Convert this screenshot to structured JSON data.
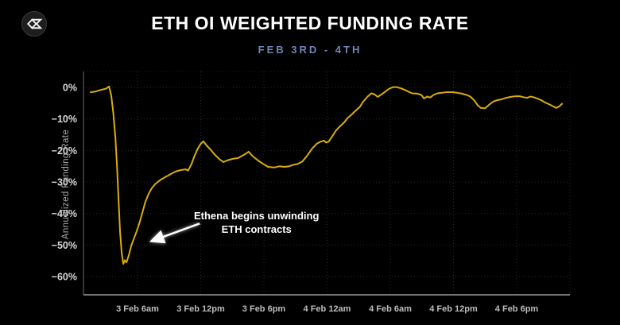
{
  "header": {
    "title": "ETH OI WEIGHTED FUNDING RATE",
    "subtitle": "FEB 3RD - 4TH",
    "logo": "velo-sigma-logo"
  },
  "colors": {
    "background": "#000000",
    "line": "#d9ad0a",
    "title": "#ffffff",
    "subtitle": "#6e86ba",
    "grid": "#2a2a2a",
    "y_tick_labels": "#d8d8d8",
    "x_tick_labels": "#bdbdbd",
    "annotation": "#ffffff"
  },
  "chart_data": {
    "type": "line",
    "title": "ETH OI WEIGHTED FUNDING RATE",
    "subtitle": "FEB 3RD - 4TH",
    "xlabel": "",
    "ylabel": "Annualized Funding Rate",
    "grid": true,
    "legend": false,
    "ylim": [
      -66,
      5
    ],
    "x_unit": "hours since 3 Feb 00:00",
    "xlim": [
      0.9,
      47
    ],
    "y_ticks": [
      {
        "v": 0,
        "label": "0%"
      },
      {
        "v": -10,
        "label": "−10%"
      },
      {
        "v": -20,
        "label": "−20%"
      },
      {
        "v": -30,
        "label": "−30%"
      },
      {
        "v": -40,
        "label": "−40%"
      },
      {
        "v": -50,
        "label": "−50%"
      },
      {
        "v": -60,
        "label": "−60%"
      }
    ],
    "x_ticks": [
      {
        "t": 6,
        "label": "3 Feb 6am"
      },
      {
        "t": 12,
        "label": "3 Feb 12pm"
      },
      {
        "t": 18,
        "label": "3 Feb 6pm"
      },
      {
        "t": 24,
        "label": "4 Feb 12am"
      },
      {
        "t": 30,
        "label": "4 Feb 6am"
      },
      {
        "t": 36,
        "label": "4 Feb 12pm"
      },
      {
        "t": 42,
        "label": "4 Feb 6pm"
      }
    ],
    "series": [
      {
        "name": "ETH OI weighted funding rate (annualized %)",
        "color": "#d9ad0a",
        "points": [
          [
            1.55,
            -1.5
          ],
          [
            2.0,
            -1.3
          ],
          [
            2.5,
            -0.8
          ],
          [
            3.0,
            -0.4
          ],
          [
            3.3,
            0.3
          ],
          [
            3.5,
            -2.5
          ],
          [
            3.7,
            -8.0
          ],
          [
            3.9,
            -16.0
          ],
          [
            4.05,
            -25.0
          ],
          [
            4.2,
            -36.0
          ],
          [
            4.35,
            -46.0
          ],
          [
            4.5,
            -52.5
          ],
          [
            4.65,
            -56.0
          ],
          [
            4.8,
            -54.8
          ],
          [
            4.95,
            -55.5
          ],
          [
            5.2,
            -53.0
          ],
          [
            5.4,
            -50.2
          ],
          [
            5.6,
            -48.5
          ],
          [
            5.9,
            -45.8
          ],
          [
            6.2,
            -42.8
          ],
          [
            6.5,
            -39.3
          ],
          [
            6.75,
            -36.3
          ],
          [
            7.05,
            -33.8
          ],
          [
            7.35,
            -32.0
          ],
          [
            7.7,
            -30.6
          ],
          [
            8.2,
            -29.3
          ],
          [
            8.65,
            -28.4
          ],
          [
            9.1,
            -27.6
          ],
          [
            9.6,
            -26.7
          ],
          [
            10.15,
            -26.2
          ],
          [
            10.6,
            -26.0
          ],
          [
            10.8,
            -26.4
          ],
          [
            11.1,
            -24.5
          ],
          [
            11.4,
            -21.8
          ],
          [
            11.7,
            -19.6
          ],
          [
            12.0,
            -17.9
          ],
          [
            12.25,
            -17.1
          ],
          [
            12.55,
            -18.4
          ],
          [
            12.95,
            -19.8
          ],
          [
            13.3,
            -21.2
          ],
          [
            13.75,
            -22.7
          ],
          [
            14.15,
            -23.7
          ],
          [
            14.5,
            -23.2
          ],
          [
            15.0,
            -22.7
          ],
          [
            15.55,
            -22.4
          ],
          [
            16.1,
            -21.4
          ],
          [
            16.55,
            -20.4
          ],
          [
            16.9,
            -21.7
          ],
          [
            17.45,
            -23.2
          ],
          [
            17.95,
            -24.3
          ],
          [
            18.4,
            -25.2
          ],
          [
            18.95,
            -25.4
          ],
          [
            19.5,
            -25.0
          ],
          [
            19.95,
            -25.2
          ],
          [
            20.4,
            -25.0
          ],
          [
            20.85,
            -24.5
          ],
          [
            21.2,
            -24.3
          ],
          [
            21.65,
            -23.5
          ],
          [
            22.1,
            -21.7
          ],
          [
            22.55,
            -19.5
          ],
          [
            23.0,
            -17.9
          ],
          [
            23.4,
            -17.2
          ],
          [
            23.7,
            -16.9
          ],
          [
            23.9,
            -17.5
          ],
          [
            24.15,
            -17.2
          ],
          [
            24.45,
            -15.7
          ],
          [
            24.8,
            -13.9
          ],
          [
            25.2,
            -12.4
          ],
          [
            25.6,
            -11.2
          ],
          [
            25.95,
            -9.7
          ],
          [
            26.3,
            -8.7
          ],
          [
            26.7,
            -7.4
          ],
          [
            27.1,
            -6.2
          ],
          [
            27.45,
            -4.4
          ],
          [
            27.85,
            -2.9
          ],
          [
            28.2,
            -1.9
          ],
          [
            28.5,
            -2.2
          ],
          [
            28.8,
            -3.0
          ],
          [
            29.1,
            -2.4
          ],
          [
            29.5,
            -1.4
          ],
          [
            29.85,
            -0.5
          ],
          [
            30.25,
            0.1
          ],
          [
            30.6,
            0.1
          ],
          [
            31.0,
            -0.3
          ],
          [
            31.4,
            -0.8
          ],
          [
            31.75,
            -1.4
          ],
          [
            32.1,
            -1.9
          ],
          [
            32.6,
            -2.0
          ],
          [
            32.95,
            -2.4
          ],
          [
            33.2,
            -3.5
          ],
          [
            33.5,
            -2.9
          ],
          [
            33.8,
            -3.2
          ],
          [
            34.1,
            -2.4
          ],
          [
            34.45,
            -1.9
          ],
          [
            34.9,
            -1.7
          ],
          [
            35.35,
            -1.5
          ],
          [
            35.9,
            -1.5
          ],
          [
            36.35,
            -1.7
          ],
          [
            36.8,
            -2.0
          ],
          [
            37.25,
            -2.4
          ],
          [
            37.6,
            -2.9
          ],
          [
            38.0,
            -4.2
          ],
          [
            38.3,
            -5.7
          ],
          [
            38.6,
            -6.5
          ],
          [
            39.0,
            -6.6
          ],
          [
            39.35,
            -5.6
          ],
          [
            39.65,
            -4.8
          ],
          [
            39.9,
            -4.3
          ],
          [
            40.2,
            -4.0
          ],
          [
            40.55,
            -3.8
          ],
          [
            41.0,
            -3.3
          ],
          [
            41.45,
            -3.0
          ],
          [
            41.9,
            -2.8
          ],
          [
            42.3,
            -2.8
          ],
          [
            42.65,
            -3.1
          ],
          [
            43.0,
            -3.3
          ],
          [
            43.3,
            -2.9
          ],
          [
            43.6,
            -3.1
          ],
          [
            43.95,
            -3.5
          ],
          [
            44.3,
            -4.0
          ],
          [
            44.7,
            -4.8
          ],
          [
            45.1,
            -5.4
          ],
          [
            45.45,
            -6.0
          ],
          [
            45.75,
            -6.5
          ],
          [
            46.05,
            -6.0
          ],
          [
            46.3,
            -5.2
          ]
        ]
      }
    ],
    "annotation": {
      "text_lines": [
        "Ethena begins unwinding",
        "ETH contracts"
      ],
      "text_anchor": {
        "t": 17.3,
        "v": -41.8
      },
      "arrow": {
        "from": {
          "t": 11.9,
          "v": -43.2
        },
        "to": {
          "t": 7.3,
          "v": -48.8
        }
      }
    }
  }
}
